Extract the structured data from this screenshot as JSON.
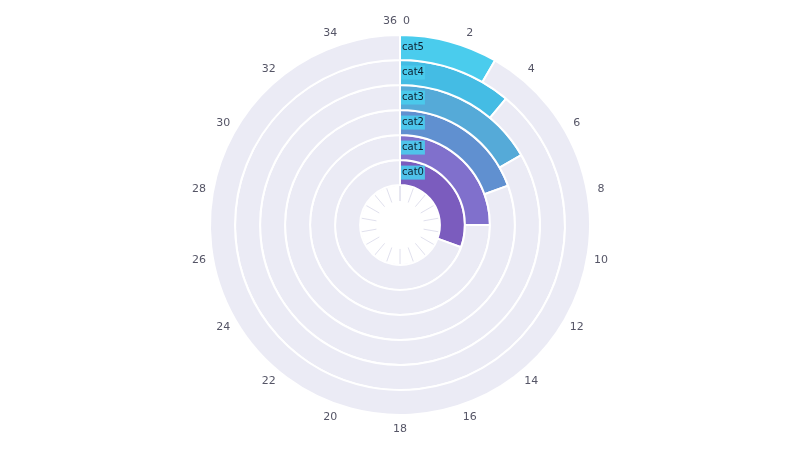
{
  "chart_data": {
    "type": "radial_bar",
    "categories": [
      "cat0",
      "cat1",
      "cat2",
      "cat3",
      "cat4",
      "cat5"
    ],
    "values": [
      11,
      9,
      7,
      6,
      4,
      3
    ],
    "colors": [
      "#7b5cbe",
      "#8070cc",
      "#6090d0",
      "#55aad8",
      "#44bce4",
      "#4acced"
    ],
    "xlim": [
      0,
      36
    ],
    "xticks": [
      0,
      2,
      4,
      6,
      8,
      10,
      12,
      14,
      16,
      18,
      20,
      22,
      24,
      26,
      28,
      30,
      32,
      34,
      36
    ],
    "grid": true
  }
}
